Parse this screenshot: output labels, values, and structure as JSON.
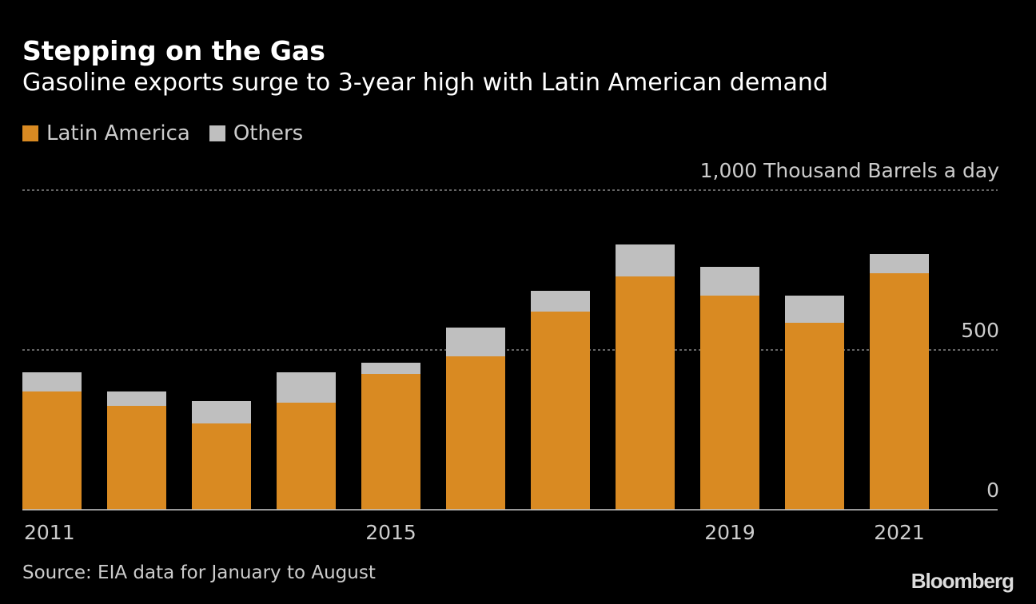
{
  "chart_data": {
    "type": "bar",
    "stacked": true,
    "title": "Stepping on the Gas",
    "subtitle": "Gasoline exports surge to 3-year high with Latin American demand",
    "ylabel": "Thousand Barrels a day",
    "ylim": [
      0,
      1000
    ],
    "yticks": [
      0,
      500,
      1000
    ],
    "ytick_labels": [
      "0",
      "500",
      "1,000 Thousand Barrels a day"
    ],
    "categories": [
      "2011",
      "2012",
      "2013",
      "2014",
      "2015",
      "2016",
      "2017",
      "2018",
      "2019",
      "2020",
      "2021"
    ],
    "xtick_labels": {
      "0": "2011",
      "4": "2015",
      "8": "2019",
      "10": "2021"
    },
    "series": [
      {
        "name": "Latin America",
        "color": "#d98a22",
        "values": [
          370,
          325,
          270,
          335,
          425,
          480,
          620,
          730,
          670,
          585,
          740
        ]
      },
      {
        "name": "Others",
        "color": "#bfbfbf",
        "values": [
          60,
          45,
          70,
          95,
          35,
          90,
          65,
          100,
          90,
          85,
          60
        ]
      }
    ],
    "grid": true,
    "legend": "top-left",
    "source": "Source: EIA data for January to August",
    "brand": "Bloomberg"
  }
}
